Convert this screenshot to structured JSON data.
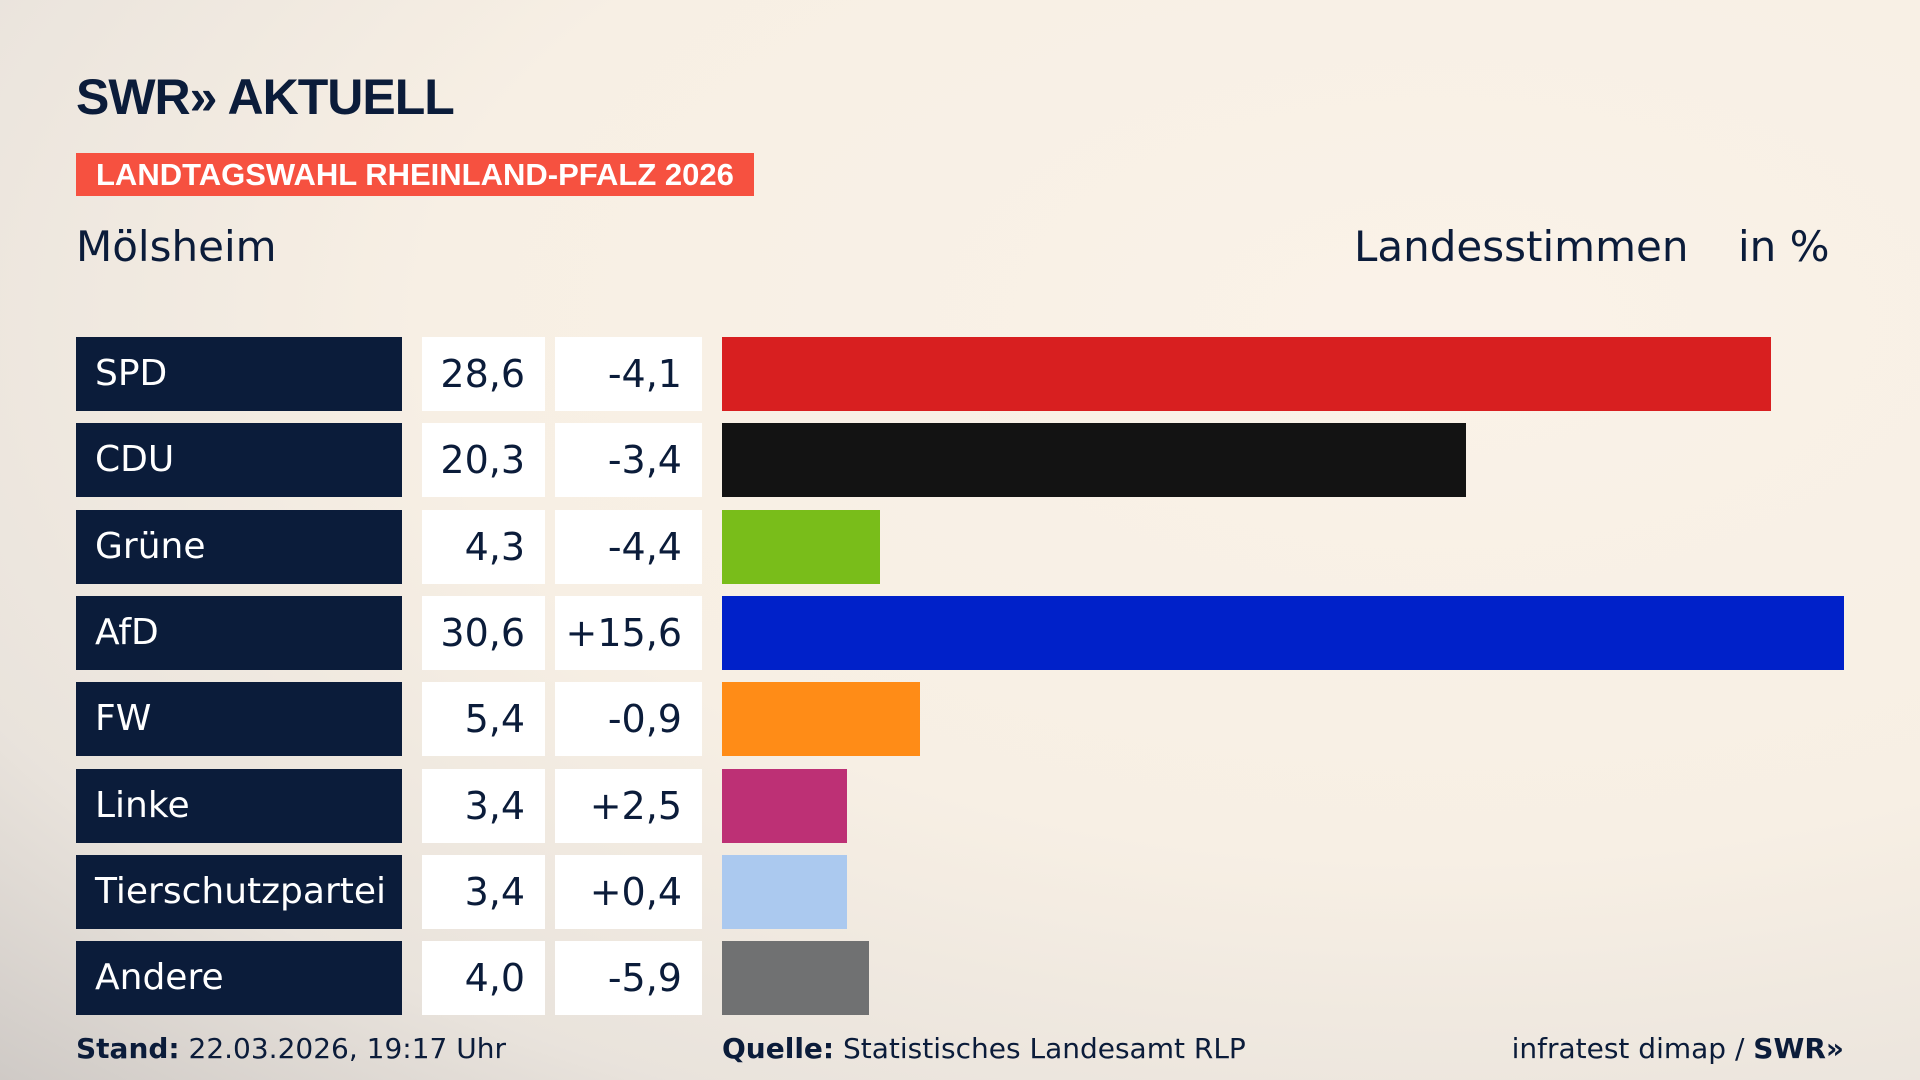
{
  "logo": "SWR» AKTUELL",
  "banner": "LANDTAGSWAHL RHEINLAND-PFALZ 2026",
  "location": "Mölsheim",
  "header_type": "Landesstimmen",
  "header_unit": "in %",
  "chart_data": {
    "type": "bar",
    "orientation": "horizontal",
    "categories": [
      "SPD",
      "CDU",
      "Grüne",
      "AfD",
      "FW",
      "Linke",
      "Tierschutzpartei",
      "Andere"
    ],
    "values": [
      28.6,
      20.3,
      4.3,
      30.6,
      5.4,
      3.4,
      3.4,
      4.0
    ],
    "value_labels": [
      "28,6",
      "20,3",
      "4,3",
      "30,6",
      "5,4",
      "3,4",
      "3,4",
      "4,0"
    ],
    "changes": [
      "-4,1",
      "-3,4",
      "-4,4",
      "+15,6",
      "-0,9",
      "+2,5",
      "+0,4",
      "-5,9"
    ],
    "colors": [
      "#d81f20",
      "#131313",
      "#79bd1a",
      "#0021c9",
      "#ff8c17",
      "#bd3075",
      "#abc9ef",
      "#707172"
    ],
    "xlim": [
      0,
      30.6
    ]
  },
  "footer": {
    "stand_label": "Stand:",
    "stand_value": " 22.03.2026, 19:17 Uhr",
    "source_label": "Quelle:",
    "source_value": " Statistisches Landesamt RLP",
    "credit": "infratest dimap / ",
    "credit_brand": "SWR»"
  }
}
